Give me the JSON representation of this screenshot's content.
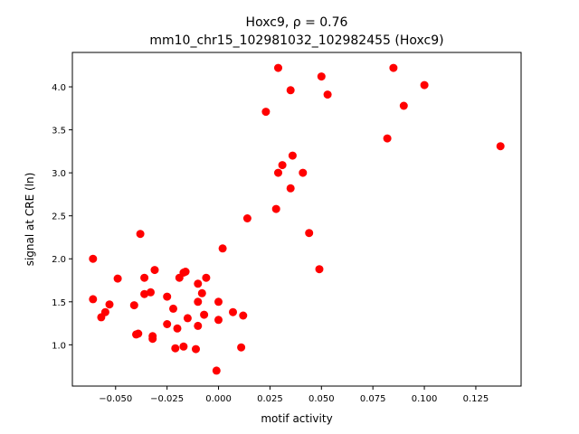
{
  "chart_data": {
    "type": "scatter",
    "title_line1": "Hoxc9, ρ = 0.76",
    "title_line2": "mm10_chr15_102981032_102982455 (Hoxc9)",
    "xlabel": "motif activity",
    "ylabel": "signal at CRE (ln)",
    "xlim": [
      -0.071,
      0.147
    ],
    "ylim": [
      0.52,
      4.4
    ],
    "xticks": [
      -0.05,
      -0.025,
      0.0,
      0.025,
      0.05,
      0.075,
      0.1,
      0.125
    ],
    "xtick_labels": [
      "−0.050",
      "−0.025",
      "0.000",
      "0.025",
      "0.050",
      "0.075",
      "0.100",
      "0.125"
    ],
    "yticks": [
      1.0,
      1.5,
      2.0,
      2.5,
      3.0,
      3.5,
      4.0
    ],
    "ytick_labels": [
      "1.0",
      "1.5",
      "2.0",
      "2.5",
      "3.0",
      "3.5",
      "4.0"
    ],
    "grid": false,
    "marker_color": "#ff0000",
    "points": [
      {
        "x": -0.061,
        "y": 2.0
      },
      {
        "x": -0.061,
        "y": 1.53
      },
      {
        "x": -0.057,
        "y": 1.32
      },
      {
        "x": -0.055,
        "y": 1.38
      },
      {
        "x": -0.053,
        "y": 1.47
      },
      {
        "x": -0.049,
        "y": 1.77
      },
      {
        "x": -0.041,
        "y": 1.46
      },
      {
        "x": -0.04,
        "y": 1.12
      },
      {
        "x": -0.039,
        "y": 1.13
      },
      {
        "x": -0.038,
        "y": 2.29
      },
      {
        "x": -0.036,
        "y": 1.78
      },
      {
        "x": -0.036,
        "y": 1.59
      },
      {
        "x": -0.033,
        "y": 1.61
      },
      {
        "x": -0.032,
        "y": 1.1
      },
      {
        "x": -0.032,
        "y": 1.07
      },
      {
        "x": -0.031,
        "y": 1.87
      },
      {
        "x": -0.025,
        "y": 1.56
      },
      {
        "x": -0.025,
        "y": 1.24
      },
      {
        "x": -0.022,
        "y": 1.42
      },
      {
        "x": -0.021,
        "y": 0.96
      },
      {
        "x": -0.02,
        "y": 1.19
      },
      {
        "x": -0.019,
        "y": 1.78
      },
      {
        "x": -0.017,
        "y": 1.84
      },
      {
        "x": -0.016,
        "y": 1.85
      },
      {
        "x": -0.017,
        "y": 0.98
      },
      {
        "x": -0.015,
        "y": 1.31
      },
      {
        "x": -0.011,
        "y": 0.95
      },
      {
        "x": -0.01,
        "y": 1.71
      },
      {
        "x": -0.01,
        "y": 1.5
      },
      {
        "x": -0.01,
        "y": 1.22
      },
      {
        "x": -0.008,
        "y": 1.6
      },
      {
        "x": -0.007,
        "y": 1.35
      },
      {
        "x": -0.006,
        "y": 1.78
      },
      {
        "x": -0.001,
        "y": 0.7
      },
      {
        "x": 0.0,
        "y": 1.5
      },
      {
        "x": 0.0,
        "y": 1.29
      },
      {
        "x": 0.002,
        "y": 2.12
      },
      {
        "x": 0.007,
        "y": 1.38
      },
      {
        "x": 0.011,
        "y": 0.97
      },
      {
        "x": 0.012,
        "y": 1.34
      },
      {
        "x": 0.014,
        "y": 2.47
      },
      {
        "x": 0.023,
        "y": 3.71
      },
      {
        "x": 0.028,
        "y": 2.58
      },
      {
        "x": 0.029,
        "y": 4.22
      },
      {
        "x": 0.029,
        "y": 3.0
      },
      {
        "x": 0.031,
        "y": 3.09
      },
      {
        "x": 0.035,
        "y": 2.82
      },
      {
        "x": 0.035,
        "y": 3.96
      },
      {
        "x": 0.036,
        "y": 3.2
      },
      {
        "x": 0.041,
        "y": 3.0
      },
      {
        "x": 0.044,
        "y": 2.3
      },
      {
        "x": 0.049,
        "y": 1.88
      },
      {
        "x": 0.05,
        "y": 4.12
      },
      {
        "x": 0.053,
        "y": 3.91
      },
      {
        "x": 0.082,
        "y": 3.4
      },
      {
        "x": 0.085,
        "y": 4.22
      },
      {
        "x": 0.09,
        "y": 3.78
      },
      {
        "x": 0.1,
        "y": 4.02
      },
      {
        "x": 0.137,
        "y": 3.31
      }
    ]
  }
}
